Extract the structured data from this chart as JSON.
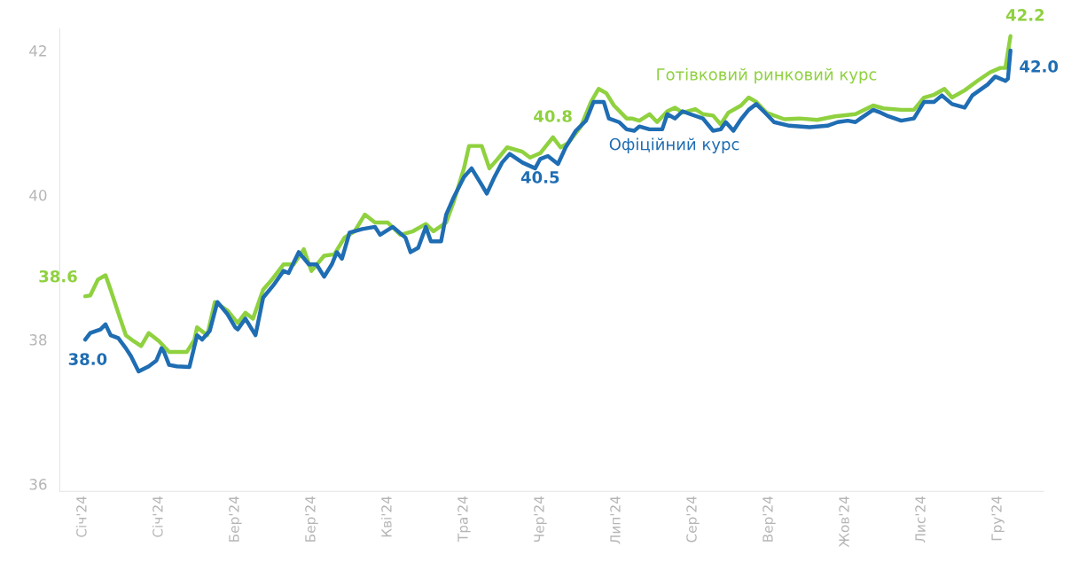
{
  "chart_data": {
    "type": "line",
    "xlim": [
      "2023-12-23",
      "2025-01-13"
    ],
    "ylim": [
      35.9,
      42.3
    ],
    "yticks": [
      36,
      38,
      40,
      42
    ],
    "xticks": [
      {
        "value": "2024-01-01",
        "label": "Січ'24"
      },
      {
        "value": "2024-01-31",
        "label": "Січ'24"
      },
      {
        "value": "2024-03-01",
        "label": "Бер'24"
      },
      {
        "value": "2024-03-31",
        "label": "Бер'24"
      },
      {
        "value": "2024-04-30",
        "label": "Кві'24"
      },
      {
        "value": "2024-05-30",
        "label": "Тра'24"
      },
      {
        "value": "2024-06-29",
        "label": "Чер'24"
      },
      {
        "value": "2024-07-29",
        "label": "Лип'24"
      },
      {
        "value": "2024-08-28",
        "label": "Сер'24"
      },
      {
        "value": "2024-09-27",
        "label": "Вер'24"
      },
      {
        "value": "2024-10-27",
        "label": "Жов'24"
      },
      {
        "value": "2024-11-26",
        "label": "Лис'24"
      },
      {
        "value": "2024-12-26",
        "label": "Гру'24"
      }
    ],
    "grid": false,
    "legend": false,
    "marker": "none",
    "line_style": "solid",
    "series": [
      {
        "name": "Готівковий ринковий курс",
        "color": "#8fd13f",
        "x": [
          "2024-01-02",
          "2024-01-04",
          "2024-01-07",
          "2024-01-10",
          "2024-01-12",
          "2024-01-15",
          "2024-01-18",
          "2024-01-21",
          "2024-01-24",
          "2024-01-27",
          "2024-01-31",
          "2024-02-04",
          "2024-02-11",
          "2024-02-14",
          "2024-02-15",
          "2024-02-19",
          "2024-02-22",
          "2024-02-27",
          "2024-03-02",
          "2024-03-05",
          "2024-03-08",
          "2024-03-12",
          "2024-03-15",
          "2024-03-20",
          "2024-03-24",
          "2024-03-28",
          "2024-03-31",
          "2024-04-05",
          "2024-04-09",
          "2024-04-13",
          "2024-04-17",
          "2024-04-21",
          "2024-04-25",
          "2024-04-30",
          "2024-05-05",
          "2024-05-10",
          "2024-05-15",
          "2024-05-18",
          "2024-05-23",
          "2024-05-26",
          "2024-05-30",
          "2024-06-01",
          "2024-06-06",
          "2024-06-09",
          "2024-06-12",
          "2024-06-16",
          "2024-06-22",
          "2024-06-25",
          "2024-06-29",
          "2024-07-04",
          "2024-07-07",
          "2024-07-10",
          "2024-07-15",
          "2024-07-19",
          "2024-07-22",
          "2024-07-25",
          "2024-07-28",
          "2024-08-02",
          "2024-08-04",
          "2024-08-07",
          "2024-08-11",
          "2024-08-14",
          "2024-08-18",
          "2024-08-21",
          "2024-08-24",
          "2024-08-29",
          "2024-09-01",
          "2024-09-05",
          "2024-09-08",
          "2024-09-11",
          "2024-09-16",
          "2024-09-19",
          "2024-09-22",
          "2024-09-26",
          "2024-10-03",
          "2024-10-09",
          "2024-10-16",
          "2024-10-23",
          "2024-10-31",
          "2024-11-07",
          "2024-11-11",
          "2024-11-18",
          "2024-11-23",
          "2024-11-27",
          "2024-12-01",
          "2024-12-05",
          "2024-12-08",
          "2024-12-13",
          "2024-12-18",
          "2024-12-23",
          "2024-12-27",
          "2024-12-29",
          "2024-12-31"
        ],
        "values": [
          38.6,
          38.61,
          38.83,
          38.89,
          38.69,
          38.37,
          38.06,
          37.98,
          37.91,
          38.09,
          37.98,
          37.83,
          37.83,
          38.0,
          38.17,
          38.06,
          38.52,
          38.4,
          38.23,
          38.37,
          38.29,
          38.69,
          38.81,
          39.04,
          39.04,
          39.25,
          38.95,
          39.16,
          39.18,
          39.41,
          39.5,
          39.73,
          39.62,
          39.62,
          39.45,
          39.5,
          39.6,
          39.5,
          39.62,
          39.91,
          40.37,
          40.68,
          40.68,
          40.37,
          40.49,
          40.66,
          40.6,
          40.52,
          40.58,
          40.8,
          40.66,
          40.72,
          40.95,
          41.29,
          41.47,
          41.41,
          41.24,
          41.06,
          41.06,
          41.03,
          41.12,
          41.01,
          41.16,
          41.21,
          41.14,
          41.19,
          41.12,
          41.1,
          40.98,
          41.14,
          41.24,
          41.35,
          41.29,
          41.14,
          41.05,
          41.06,
          41.04,
          41.09,
          41.12,
          41.24,
          41.2,
          41.18,
          41.18,
          41.35,
          41.39,
          41.47,
          41.35,
          41.45,
          41.58,
          41.7,
          41.76,
          41.76,
          42.2
        ]
      },
      {
        "name": "Офіційний курс",
        "color": "#1f6db3",
        "x": [
          "2024-01-02",
          "2024-01-04",
          "2024-01-08",
          "2024-01-10",
          "2024-01-12",
          "2024-01-15",
          "2024-01-18",
          "2024-01-20",
          "2024-01-23",
          "2024-01-27",
          "2024-01-30",
          "2024-02-01",
          "2024-02-02",
          "2024-02-04",
          "2024-02-07",
          "2024-02-12",
          "2024-02-15",
          "2024-02-17",
          "2024-02-20",
          "2024-02-23",
          "2024-02-27",
          "2024-03-01",
          "2024-03-02",
          "2024-03-05",
          "2024-03-09",
          "2024-03-12",
          "2024-03-16",
          "2024-03-20",
          "2024-03-22",
          "2024-03-26",
          "2024-03-30",
          "2024-04-02",
          "2024-04-05",
          "2024-04-08",
          "2024-04-10",
          "2024-04-12",
          "2024-04-15",
          "2024-04-20",
          "2024-04-25",
          "2024-04-27",
          "2024-05-02",
          "2024-05-07",
          "2024-05-09",
          "2024-05-12",
          "2024-05-15",
          "2024-05-17",
          "2024-05-21",
          "2024-05-23",
          "2024-05-26",
          "2024-05-30",
          "2024-06-02",
          "2024-06-06",
          "2024-06-08",
          "2024-06-11",
          "2024-06-14",
          "2024-06-17",
          "2024-06-22",
          "2024-06-27",
          "2024-06-29",
          "2024-07-02",
          "2024-07-06",
          "2024-07-09",
          "2024-07-13",
          "2024-07-17",
          "2024-07-20",
          "2024-07-24",
          "2024-07-26",
          "2024-07-30",
          "2024-08-02",
          "2024-08-05",
          "2024-08-07",
          "2024-08-11",
          "2024-08-16",
          "2024-08-18",
          "2024-08-21",
          "2024-08-24",
          "2024-08-27",
          "2024-09-01",
          "2024-09-05",
          "2024-09-08",
          "2024-09-10",
          "2024-09-13",
          "2024-09-16",
          "2024-09-19",
          "2024-09-22",
          "2024-09-26",
          "2024-09-29",
          "2024-10-05",
          "2024-10-13",
          "2024-10-20",
          "2024-10-24",
          "2024-10-28",
          "2024-10-31",
          "2024-11-02",
          "2024-11-07",
          "2024-11-10",
          "2024-11-13",
          "2024-11-18",
          "2024-11-23",
          "2024-11-27",
          "2024-12-01",
          "2024-12-04",
          "2024-12-08",
          "2024-12-13",
          "2024-12-16",
          "2024-12-22",
          "2024-12-25",
          "2024-12-29",
          "2024-12-30",
          "2024-12-31"
        ],
        "values": [
          38.0,
          38.09,
          38.14,
          38.21,
          38.06,
          38.02,
          37.88,
          37.77,
          37.56,
          37.63,
          37.71,
          37.88,
          37.83,
          37.65,
          37.63,
          37.62,
          38.06,
          38.0,
          38.12,
          38.52,
          38.35,
          38.17,
          38.14,
          38.29,
          38.06,
          38.58,
          38.75,
          38.95,
          38.92,
          39.21,
          39.04,
          39.04,
          38.87,
          39.04,
          39.21,
          39.12,
          39.48,
          39.53,
          39.56,
          39.45,
          39.56,
          39.41,
          39.21,
          39.27,
          39.56,
          39.36,
          39.36,
          39.73,
          39.97,
          40.25,
          40.37,
          40.14,
          40.02,
          40.25,
          40.45,
          40.57,
          40.45,
          40.37,
          40.5,
          40.54,
          40.43,
          40.66,
          40.89,
          41.03,
          41.29,
          41.29,
          41.06,
          41.01,
          40.91,
          40.89,
          40.95,
          40.91,
          40.91,
          41.12,
          41.06,
          41.16,
          41.12,
          41.06,
          40.89,
          40.91,
          41.01,
          40.89,
          41.05,
          41.18,
          41.26,
          41.12,
          41.01,
          40.96,
          40.94,
          40.96,
          41.01,
          41.03,
          41.01,
          41.06,
          41.18,
          41.14,
          41.09,
          41.03,
          41.06,
          41.29,
          41.29,
          41.38,
          41.26,
          41.21,
          41.38,
          41.53,
          41.64,
          41.58,
          41.61,
          42.0
        ]
      }
    ],
    "annotations": [
      {
        "text": "38.6",
        "x": "2024-01-02",
        "y": 38.6
      },
      {
        "text": "38.0",
        "x": "2024-01-02",
        "y": 38.0
      },
      {
        "text": "40.8",
        "x": "2024-07-04",
        "y": 40.8
      },
      {
        "text": "40.5",
        "x": "2024-06-29",
        "y": 40.5
      },
      {
        "text": "42.2",
        "x": "2024-12-31",
        "y": 42.2
      },
      {
        "text": "42.0",
        "x": "2024-12-31",
        "y": 42.0
      }
    ]
  }
}
